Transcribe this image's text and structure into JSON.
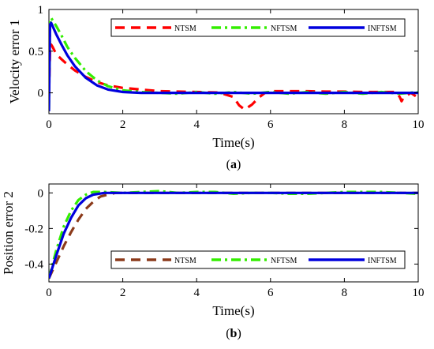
{
  "chart_data": [
    {
      "type": "line",
      "panel": "a",
      "caption_letter": "a",
      "xlabel": "Time(s)",
      "ylabel": "Velocity error 1",
      "xlim": [
        0,
        10
      ],
      "ylim": [
        -0.25,
        1
      ],
      "xticks": [
        0,
        2,
        4,
        6,
        8,
        10
      ],
      "yticks": [
        0,
        0.5,
        1
      ],
      "xtick_labels": [
        "0",
        "2",
        "4",
        "6",
        "8",
        "10"
      ],
      "ytick_labels": [
        "0",
        "0.5",
        "1"
      ],
      "grid": false,
      "legend_position": "top, inside",
      "series": [
        {
          "name": "NTSM",
          "color": "#ff0000",
          "dash": "dashed",
          "x": [
            0,
            0.03,
            0.06,
            0.1,
            0.2,
            0.35,
            0.5,
            0.7,
            1.0,
            1.3,
            1.6,
            2.0,
            2.5,
            3.0,
            3.5,
            4.0,
            4.6,
            5.0,
            5.15,
            5.3,
            5.5,
            5.7,
            5.85,
            6.0,
            6.5,
            7.0,
            7.5,
            8.0,
            8.5,
            9.0,
            9.4,
            9.5,
            9.55,
            9.6,
            9.8,
            10.0
          ],
          "y": [
            0,
            0.5,
            0.58,
            0.55,
            0.46,
            0.4,
            0.34,
            0.27,
            0.19,
            0.13,
            0.09,
            0.06,
            0.04,
            0.02,
            0.015,
            0.01,
            0.005,
            -0.05,
            -0.15,
            -0.2,
            -0.14,
            -0.05,
            0.0,
            0.02,
            0.02,
            0.02,
            0.015,
            0.015,
            0.01,
            0.01,
            0.01,
            -0.05,
            -0.1,
            -0.06,
            0.0,
            -0.06
          ]
        },
        {
          "name": "NFTSM",
          "color": "#33ee00",
          "dash": "dashdot",
          "x": [
            0,
            0.03,
            0.06,
            0.1,
            0.2,
            0.35,
            0.5,
            0.7,
            1.0,
            1.3,
            1.6,
            2.0,
            2.5,
            3.0,
            3.5,
            4.0,
            4.5,
            5.0,
            5.5,
            6.0,
            6.5,
            7.0,
            7.5,
            8.0,
            8.5,
            9.0,
            9.5,
            10.0
          ],
          "y": [
            -0.2,
            0.85,
            0.9,
            0.87,
            0.8,
            0.68,
            0.55,
            0.42,
            0.26,
            0.15,
            0.08,
            0.03,
            0.01,
            0.0,
            -0.01,
            0.01,
            -0.01,
            0.01,
            -0.01,
            0.01,
            -0.01,
            0.01,
            -0.01,
            0.01,
            -0.01,
            0.01,
            -0.01,
            0.01
          ]
        },
        {
          "name": "INFTSM",
          "color": "#0000dd",
          "dash": "solid",
          "x": [
            0,
            0.03,
            0.06,
            0.1,
            0.2,
            0.35,
            0.5,
            0.7,
            1.0,
            1.3,
            1.6,
            2.0,
            2.5,
            3.0,
            4.0,
            5.0,
            6.0,
            7.0,
            8.0,
            9.0,
            10.0
          ],
          "y": [
            -0.22,
            0.82,
            0.84,
            0.8,
            0.7,
            0.57,
            0.45,
            0.32,
            0.18,
            0.09,
            0.04,
            0.01,
            0.0,
            0.0,
            0.0,
            0.0,
            0.0,
            0.0,
            0.0,
            0.0,
            0.0
          ]
        }
      ]
    },
    {
      "type": "line",
      "panel": "b",
      "caption_letter": "b",
      "xlabel": "Time(s)",
      "ylabel": "Position error 2",
      "xlim": [
        0,
        10
      ],
      "ylim": [
        -0.5,
        0.05
      ],
      "xticks": [
        0,
        2,
        4,
        6,
        8,
        10
      ],
      "yticks": [
        -0.4,
        -0.2,
        0
      ],
      "xtick_labels": [
        "0",
        "2",
        "4",
        "6",
        "8",
        "10"
      ],
      "ytick_labels": [
        "-0.4",
        "-0.2",
        "0"
      ],
      "grid": false,
      "legend_position": "bottom, inside",
      "series": [
        {
          "name": "NTSM",
          "color": "#8b3a1a",
          "dash": "dashed",
          "x": [
            0,
            0.2,
            0.4,
            0.6,
            0.8,
            1.0,
            1.2,
            1.4,
            1.6,
            1.8,
            2.0,
            2.5,
            3.0,
            4.0,
            5.0,
            6.0,
            7.0,
            8.0,
            9.0,
            10.0
          ],
          "y": [
            -0.48,
            -0.39,
            -0.3,
            -0.22,
            -0.15,
            -0.09,
            -0.05,
            -0.02,
            -0.01,
            0.0,
            0.0,
            0.0,
            0.0,
            0.0,
            0.0,
            0.0,
            0.0,
            0.0,
            0.0,
            0.0
          ]
        },
        {
          "name": "NFTSM",
          "color": "#33ee00",
          "dash": "dashdot",
          "x": [
            0,
            0.2,
            0.4,
            0.6,
            0.8,
            1.0,
            1.2,
            1.5,
            2.0,
            2.5,
            3.0,
            3.5,
            4.0,
            4.5,
            5.0,
            5.5,
            6.0,
            6.5,
            7.0,
            7.5,
            8.0,
            8.5,
            9.0,
            9.5,
            10.0
          ],
          "y": [
            -0.48,
            -0.32,
            -0.19,
            -0.1,
            -0.04,
            -0.01,
            0.005,
            0.005,
            0.0,
            0.005,
            0.01,
            0.0,
            0.005,
            0.005,
            -0.005,
            0.0,
            0.0,
            -0.005,
            -0.005,
            0.0,
            0.005,
            0.005,
            0.005,
            0.0,
            -0.005
          ]
        },
        {
          "name": "INFTSM",
          "color": "#0000dd",
          "dash": "solid",
          "x": [
            0,
            0.2,
            0.4,
            0.6,
            0.8,
            1.0,
            1.2,
            1.5,
            2.0,
            3.0,
            4.0,
            5.0,
            6.0,
            7.0,
            8.0,
            9.0,
            10.0
          ],
          "y": [
            -0.48,
            -0.35,
            -0.23,
            -0.14,
            -0.07,
            -0.03,
            -0.01,
            0.0,
            0.0,
            0.0,
            0.0,
            0.0,
            0.0,
            0.0,
            0.0,
            0.0,
            0.0
          ]
        }
      ]
    }
  ]
}
